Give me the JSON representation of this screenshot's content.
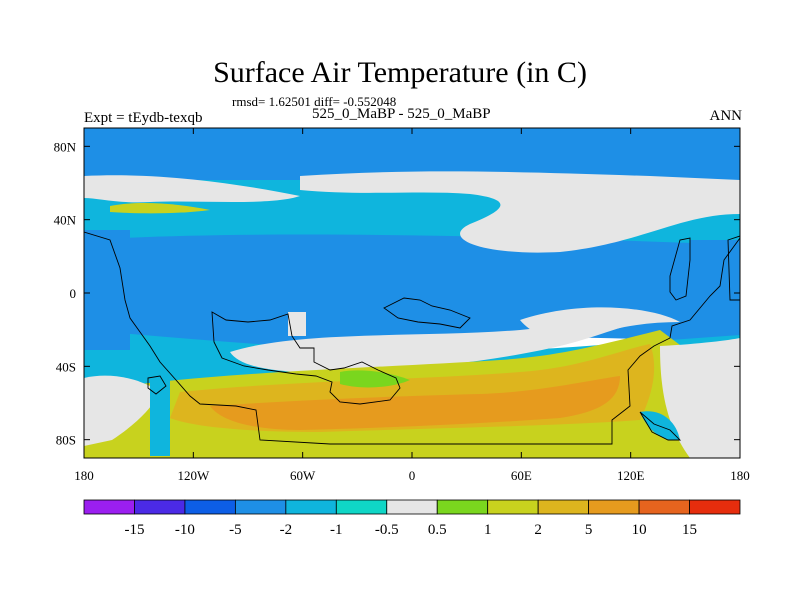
{
  "chart_data": {
    "type": "heatmap",
    "title": "Surface Air Temperature (in C)",
    "subtitle": "rmsd= 1.62501 diff= -0.552048",
    "left_label": "Expt = tEydb-texqb",
    "center_label": "525_0_MaBP - 525_0_MaBP",
    "right_label": "ANN",
    "x_ticks": [
      "180",
      "120W",
      "60W",
      "0",
      "60E",
      "120E",
      "180"
    ],
    "x_values": [
      -180,
      -120,
      -60,
      0,
      60,
      120,
      180
    ],
    "y_ticks": [
      "80N",
      "40N",
      "0",
      "40S",
      "80S"
    ],
    "y_values": [
      80,
      40,
      0,
      -40,
      -80
    ],
    "xlim": [
      -180,
      180
    ],
    "ylim": [
      -90,
      90
    ],
    "colorbar_labels": [
      "-15",
      "-10",
      "-5",
      "-2",
      "-1",
      "-0.5",
      "0.5",
      "1",
      "2",
      "5",
      "10",
      "15"
    ],
    "colorbar_colors": [
      "#9b1ff0",
      "#4b2ae6",
      "#0d5ee6",
      "#1e8fe6",
      "#0fb5dd",
      "#0fd6c6",
      "#e6e6e6",
      "#7ad61e",
      "#c8d21e",
      "#ddb51e",
      "#e69b1e",
      "#e6641e",
      "#e62d0d"
    ],
    "fields": {
      "cold_strong": "#0d5ee6",
      "cool": "#1e8fe6",
      "cool_light": "#0fb5dd",
      "neutral_cool": "#0fd6c6",
      "neutral": "#e6e6e6",
      "warm_light": "#7ad61e",
      "warm": "#c8d21e",
      "warm_strong": "#ddb51e",
      "hot": "#e69b1e"
    }
  }
}
